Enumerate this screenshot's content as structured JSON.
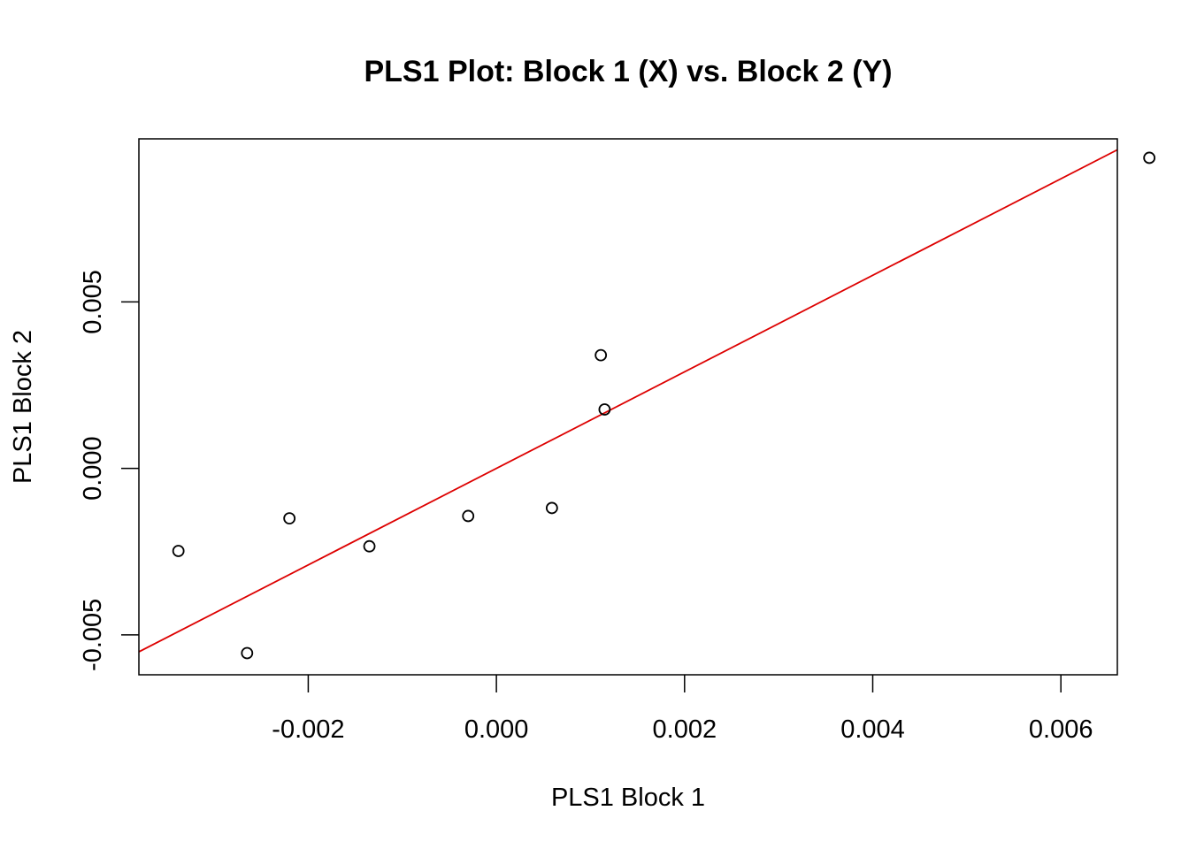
{
  "chart_data": {
    "type": "scatter",
    "title": "PLS1 Plot: Block 1 (X) vs. Block 2 (Y)",
    "xlabel": "PLS1 Block 1",
    "ylabel": "PLS1 Block 2",
    "xlim": [
      -0.0038,
      0.0066
    ],
    "ylim": [
      -0.0062,
      0.0099
    ],
    "xticks": [
      -0.002,
      0.0,
      0.002,
      0.004,
      0.006
    ],
    "xtick_labels": [
      "-0.002",
      "0.000",
      "0.002",
      "0.004",
      "0.006"
    ],
    "yticks": [
      -0.005,
      0.0,
      0.005
    ],
    "ytick_labels": [
      "-0.005",
      "0.000",
      "0.005"
    ],
    "grid": false,
    "point_color": "#000000",
    "line_color": "#dd0000",
    "points": [
      {
        "x": -0.00338,
        "y": -0.00248
      },
      {
        "x": -0.00265,
        "y": -0.00555
      },
      {
        "x": -0.0022,
        "y": -0.0015
      },
      {
        "x": -0.00135,
        "y": -0.00234
      },
      {
        "x": -0.0003,
        "y": -0.00143
      },
      {
        "x": 0.00059,
        "y": -0.00119
      },
      {
        "x": 0.00111,
        "y": 0.0034
      },
      {
        "x": 0.00115,
        "y": 0.00177
      },
      {
        "x": 0.00694,
        "y": 0.00933
      }
    ],
    "fit_line": {
      "slope": 1.45,
      "intercept": 0.0
    }
  }
}
